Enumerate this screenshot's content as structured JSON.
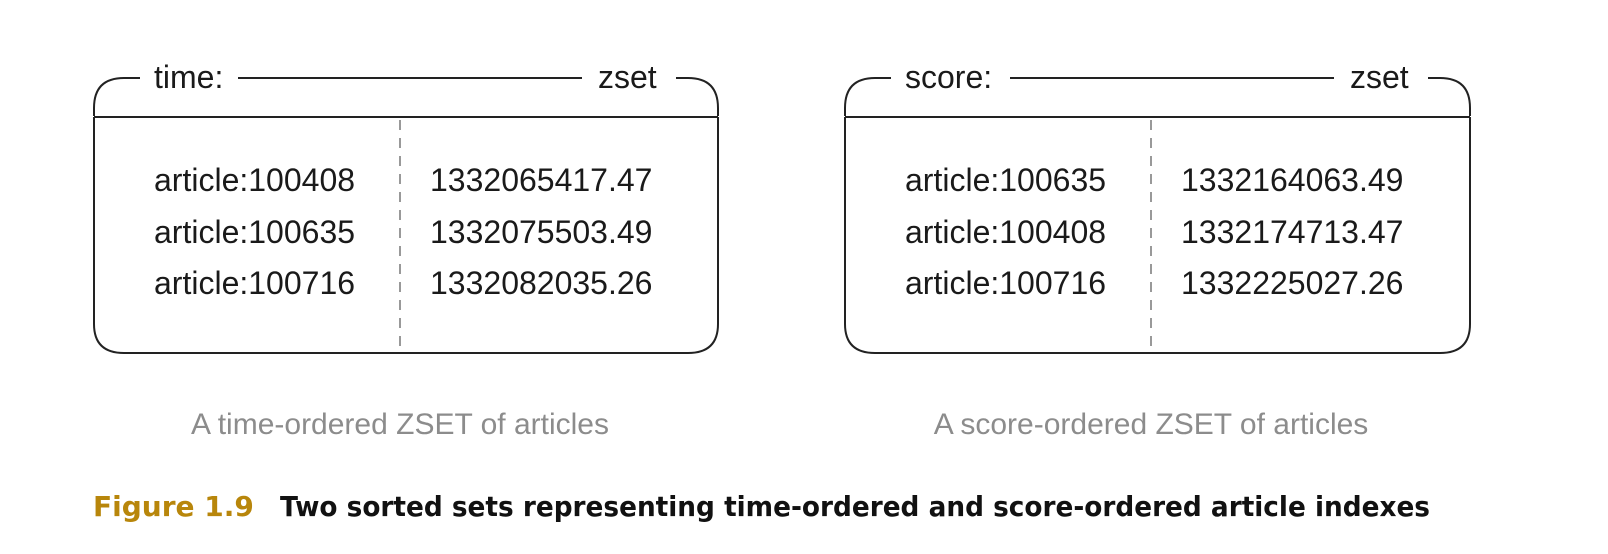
{
  "zsets": [
    {
      "key_label": "time:",
      "type_label": "zset",
      "rows": [
        {
          "member": "article:100408",
          "score": "1332065417.47"
        },
        {
          "member": "article:100635",
          "score": "1332075503.49"
        },
        {
          "member": "article:100716",
          "score": "1332082035.26"
        }
      ],
      "caption": "A time-ordered ZSET of articles"
    },
    {
      "key_label": "score:",
      "type_label": "zset",
      "rows": [
        {
          "member": "article:100635",
          "score": "1332164063.49"
        },
        {
          "member": "article:100408",
          "score": "1332174713.47"
        },
        {
          "member": "article:100716",
          "score": "1332225027.26"
        }
      ],
      "caption": "A score-ordered ZSET of articles"
    }
  ],
  "figure": {
    "label": "Figure 1.9",
    "title": "Two sorted sets representing time-ordered and score-ordered article indexes"
  },
  "colors": {
    "figure_label": "#b8860b",
    "caption": "#8c8c8c"
  }
}
